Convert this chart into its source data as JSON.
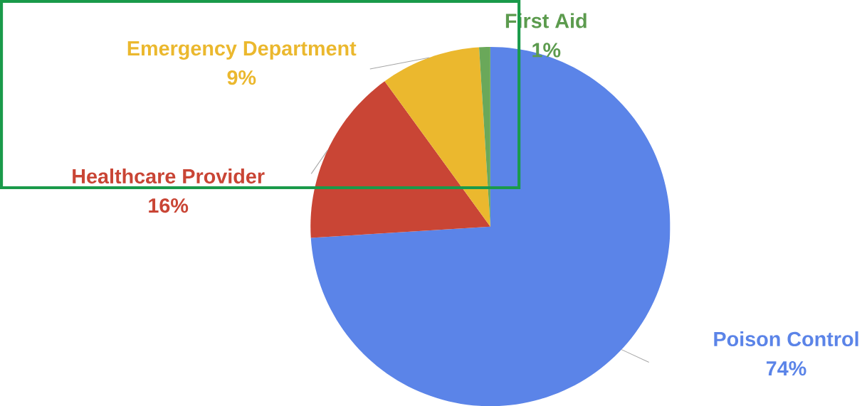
{
  "chart_data": {
    "type": "pie",
    "categories": [
      "Poison Control",
      "Healthcare Provider",
      "Emergency Department",
      "First Aid"
    ],
    "values": [
      74,
      16,
      9,
      1
    ],
    "value_labels": [
      "74%",
      "16%",
      "9%",
      "1%"
    ],
    "colors": [
      "#5b84e8",
      "#c94535",
      "#ebb82e",
      "#6aa85a"
    ],
    "legend": false
  }
}
